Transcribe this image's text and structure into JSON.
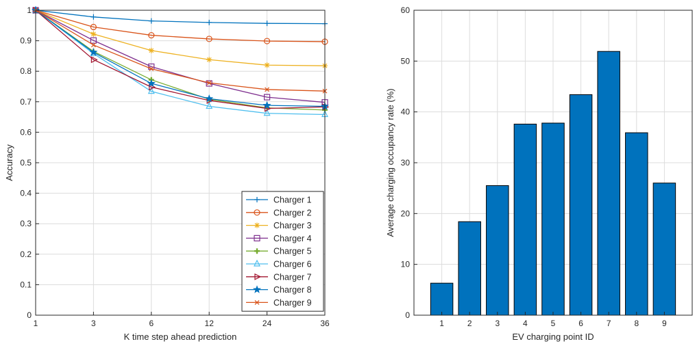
{
  "chart_data": [
    {
      "type": "line",
      "title": "",
      "xlabel": "K time step ahead prediction",
      "ylabel": "Accuracy",
      "categories": [
        "1",
        "3",
        "6",
        "12",
        "24",
        "36"
      ],
      "ylim": [
        0,
        1
      ],
      "yticks": [
        "0",
        "0.1",
        "0.2",
        "0.3",
        "0.4",
        "0.5",
        "0.6",
        "0.7",
        "0.8",
        "0.9",
        "1"
      ],
      "grid": true,
      "legend_position": "bottom-right",
      "series": [
        {
          "name": "Charger 1",
          "marker": "plus",
          "color": "#0072BD",
          "values": [
            1.0,
            0.978,
            0.965,
            0.96,
            0.957,
            0.956
          ]
        },
        {
          "name": "Charger 2",
          "marker": "circle",
          "color": "#D95319",
          "values": [
            1.0,
            0.945,
            0.918,
            0.906,
            0.899,
            0.897
          ]
        },
        {
          "name": "Charger 3",
          "marker": "asterisk",
          "color": "#EDB120",
          "values": [
            1.0,
            0.922,
            0.868,
            0.838,
            0.82,
            0.818
          ]
        },
        {
          "name": "Charger 4",
          "marker": "square",
          "color": "#7E2F8E",
          "values": [
            1.0,
            0.901,
            0.815,
            0.76,
            0.715,
            0.698
          ]
        },
        {
          "name": "Charger 5",
          "marker": "cross",
          "color": "#77AC30",
          "values": [
            1.0,
            0.865,
            0.772,
            0.708,
            0.68,
            0.673
          ]
        },
        {
          "name": "Charger 6",
          "marker": "triangle",
          "color": "#4DBEEE",
          "values": [
            1.0,
            0.858,
            0.734,
            0.685,
            0.662,
            0.658
          ]
        },
        {
          "name": "Charger 7",
          "marker": "triright",
          "color": "#A2142F",
          "values": [
            1.0,
            0.838,
            0.748,
            0.704,
            0.678,
            0.683
          ]
        },
        {
          "name": "Charger 8",
          "marker": "star",
          "color": "#0072BD",
          "values": [
            1.0,
            0.862,
            0.76,
            0.71,
            0.688,
            0.685
          ]
        },
        {
          "name": "Charger 9",
          "marker": "x",
          "color": "#D95319",
          "values": [
            1.0,
            0.886,
            0.808,
            0.762,
            0.74,
            0.735
          ]
        }
      ]
    },
    {
      "type": "bar",
      "title": "",
      "xlabel": "EV charging point ID",
      "ylabel": "Average charging occupancy rate (%)",
      "categories": [
        "1",
        "2",
        "3",
        "4",
        "5",
        "6",
        "7",
        "8",
        "9"
      ],
      "values": [
        6.3,
        18.4,
        25.5,
        37.6,
        37.8,
        43.4,
        51.9,
        35.9,
        26.0
      ],
      "ylim": [
        0,
        60
      ],
      "yticks": [
        "0",
        "10",
        "20",
        "30",
        "40",
        "50",
        "60"
      ],
      "grid": true,
      "bar_color": "#0072BD"
    }
  ]
}
